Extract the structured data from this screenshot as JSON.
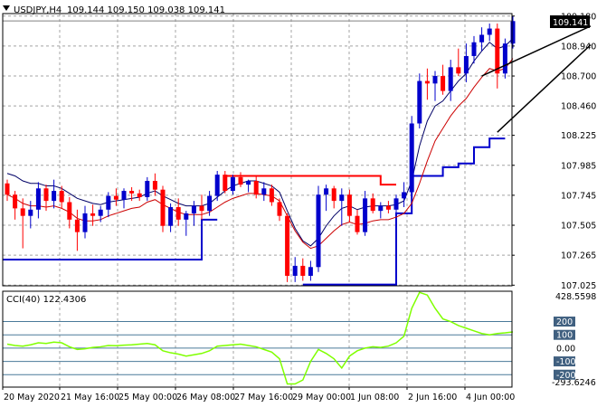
{
  "header": {
    "symbol_timeframe": "USDJPY,H4",
    "ohlc": "109.144 109.150 109.038 109.141"
  },
  "price_badge": {
    "value": "109.141"
  },
  "cci_panel": {
    "label": "CCI(40) 122.4306",
    "max_label": "428.5598",
    "min_label": "-293.6246",
    "levels": [
      "200",
      "100",
      "0.00",
      "-100",
      "-200"
    ]
  },
  "chart_data": [
    {
      "type": "candlestick",
      "panel": "main",
      "title": "USDJPY,H4",
      "x_ticks": [
        "20 May 2020",
        "21 May 16:00",
        "25 May 00:00",
        "26 May 08:00",
        "27 May 16:00",
        "29 May 00:00",
        "1 Jun 08:00",
        "2 Jun 16:00",
        "4 Jun 00:00"
      ],
      "y_ticks": [
        "109.180",
        "108.940",
        "108.700",
        "108.460",
        "108.225",
        "107.985",
        "107.745",
        "107.505",
        "107.265",
        "107.025"
      ],
      "ylim": [
        107.02,
        109.2
      ],
      "grid": true,
      "colors": {
        "up": "#0000cc",
        "down": "#ff0000",
        "grid": "#a4a4a4",
        "fast_ma": "#000066",
        "slow_ma": "#cc0000",
        "stop_line": "#0000cc",
        "resistance": "#ff0000",
        "wedge": "#000000",
        "price_line": "#808080"
      },
      "candles": [
        {
          "o": 107.84,
          "h": 107.87,
          "l": 107.7,
          "c": 107.75
        },
        {
          "o": 107.75,
          "h": 107.78,
          "l": 107.55,
          "c": 107.64
        },
        {
          "o": 107.64,
          "h": 107.72,
          "l": 107.32,
          "c": 107.58
        },
        {
          "o": 107.58,
          "h": 107.7,
          "l": 107.48,
          "c": 107.63
        },
        {
          "o": 107.63,
          "h": 107.85,
          "l": 107.56,
          "c": 107.8
        },
        {
          "o": 107.8,
          "h": 107.83,
          "l": 107.62,
          "c": 107.7
        },
        {
          "o": 107.7,
          "h": 107.87,
          "l": 107.64,
          "c": 107.78
        },
        {
          "o": 107.78,
          "h": 107.82,
          "l": 107.64,
          "c": 107.69
        },
        {
          "o": 107.69,
          "h": 107.73,
          "l": 107.48,
          "c": 107.55
        },
        {
          "o": 107.55,
          "h": 107.63,
          "l": 107.3,
          "c": 107.45
        },
        {
          "o": 107.45,
          "h": 107.66,
          "l": 107.4,
          "c": 107.6
        },
        {
          "o": 107.6,
          "h": 107.67,
          "l": 107.5,
          "c": 107.58
        },
        {
          "o": 107.58,
          "h": 107.66,
          "l": 107.53,
          "c": 107.63
        },
        {
          "o": 107.63,
          "h": 107.77,
          "l": 107.57,
          "c": 107.74
        },
        {
          "o": 107.74,
          "h": 107.8,
          "l": 107.66,
          "c": 107.71
        },
        {
          "o": 107.71,
          "h": 107.8,
          "l": 107.64,
          "c": 107.78
        },
        {
          "o": 107.78,
          "h": 107.81,
          "l": 107.7,
          "c": 107.76
        },
        {
          "o": 107.76,
          "h": 107.79,
          "l": 107.7,
          "c": 107.73
        },
        {
          "o": 107.73,
          "h": 107.89,
          "l": 107.7,
          "c": 107.86
        },
        {
          "o": 107.86,
          "h": 107.92,
          "l": 107.74,
          "c": 107.79
        },
        {
          "o": 107.79,
          "h": 107.82,
          "l": 107.45,
          "c": 107.5
        },
        {
          "o": 107.5,
          "h": 107.68,
          "l": 107.45,
          "c": 107.65
        },
        {
          "o": 107.65,
          "h": 107.72,
          "l": 107.5,
          "c": 107.55
        },
        {
          "o": 107.55,
          "h": 107.62,
          "l": 107.42,
          "c": 107.6
        },
        {
          "o": 107.6,
          "h": 107.7,
          "l": 107.5,
          "c": 107.66
        },
        {
          "o": 107.66,
          "h": 107.75,
          "l": 107.55,
          "c": 107.62
        },
        {
          "o": 107.62,
          "h": 107.78,
          "l": 107.58,
          "c": 107.74
        },
        {
          "o": 107.74,
          "h": 107.94,
          "l": 107.7,
          "c": 107.91
        },
        {
          "o": 107.91,
          "h": 107.94,
          "l": 107.76,
          "c": 107.78
        },
        {
          "o": 107.78,
          "h": 107.91,
          "l": 107.75,
          "c": 107.89
        },
        {
          "o": 107.89,
          "h": 107.93,
          "l": 107.81,
          "c": 107.83
        },
        {
          "o": 107.83,
          "h": 107.87,
          "l": 107.77,
          "c": 107.86
        },
        {
          "o": 107.86,
          "h": 107.9,
          "l": 107.72,
          "c": 107.75
        },
        {
          "o": 107.75,
          "h": 107.85,
          "l": 107.7,
          "c": 107.8
        },
        {
          "o": 107.8,
          "h": 107.83,
          "l": 107.66,
          "c": 107.69
        },
        {
          "o": 107.69,
          "h": 107.72,
          "l": 107.54,
          "c": 107.58
        },
        {
          "o": 107.58,
          "h": 107.6,
          "l": 107.05,
          "c": 107.1
        },
        {
          "o": 107.1,
          "h": 107.25,
          "l": 107.05,
          "c": 107.18
        },
        {
          "o": 107.18,
          "h": 107.24,
          "l": 107.06,
          "c": 107.1
        },
        {
          "o": 107.1,
          "h": 107.22,
          "l": 107.06,
          "c": 107.17
        },
        {
          "o": 107.17,
          "h": 107.82,
          "l": 107.13,
          "c": 107.75
        },
        {
          "o": 107.75,
          "h": 107.83,
          "l": 107.62,
          "c": 107.8
        },
        {
          "o": 107.8,
          "h": 107.82,
          "l": 107.64,
          "c": 107.7
        },
        {
          "o": 107.7,
          "h": 107.8,
          "l": 107.5,
          "c": 107.75
        },
        {
          "o": 107.75,
          "h": 107.79,
          "l": 107.53,
          "c": 107.58
        },
        {
          "o": 107.58,
          "h": 107.63,
          "l": 107.43,
          "c": 107.45
        },
        {
          "o": 107.45,
          "h": 107.78,
          "l": 107.42,
          "c": 107.72
        },
        {
          "o": 107.72,
          "h": 107.76,
          "l": 107.6,
          "c": 107.62
        },
        {
          "o": 107.62,
          "h": 107.69,
          "l": 107.56,
          "c": 107.66
        },
        {
          "o": 107.66,
          "h": 107.7,
          "l": 107.6,
          "c": 107.63
        },
        {
          "o": 107.63,
          "h": 107.75,
          "l": 107.58,
          "c": 107.72
        },
        {
          "o": 107.72,
          "h": 107.85,
          "l": 107.65,
          "c": 107.77
        },
        {
          "o": 107.77,
          "h": 108.38,
          "l": 107.74,
          "c": 108.32
        },
        {
          "o": 108.32,
          "h": 108.72,
          "l": 108.28,
          "c": 108.66
        },
        {
          "o": 108.66,
          "h": 108.76,
          "l": 108.51,
          "c": 108.64
        },
        {
          "o": 108.64,
          "h": 108.74,
          "l": 108.5,
          "c": 108.7
        },
        {
          "o": 108.7,
          "h": 108.79,
          "l": 108.55,
          "c": 108.58
        },
        {
          "o": 108.58,
          "h": 108.83,
          "l": 108.5,
          "c": 108.77
        },
        {
          "o": 108.77,
          "h": 108.92,
          "l": 108.7,
          "c": 108.72
        },
        {
          "o": 108.72,
          "h": 108.96,
          "l": 108.65,
          "c": 108.86
        },
        {
          "o": 108.86,
          "h": 109.02,
          "l": 108.8,
          "c": 108.97
        },
        {
          "o": 108.97,
          "h": 109.09,
          "l": 108.9,
          "c": 109.03
        },
        {
          "o": 109.03,
          "h": 109.12,
          "l": 108.98,
          "c": 109.08
        },
        {
          "o": 109.08,
          "h": 109.12,
          "l": 108.6,
          "c": 108.72
        },
        {
          "o": 108.72,
          "h": 109.0,
          "l": 108.68,
          "c": 108.96
        },
        {
          "o": 108.96,
          "h": 109.18,
          "l": 108.92,
          "c": 109.14
        }
      ],
      "series": [
        {
          "values": [
            107.92,
            107.9,
            107.86,
            107.84,
            107.84,
            107.82,
            107.82,
            107.8,
            107.76,
            107.72,
            107.7,
            107.68,
            107.67,
            107.69,
            107.7,
            107.71,
            107.72,
            107.73,
            107.76,
            107.78,
            107.74,
            107.71,
            107.68,
            107.66,
            107.66,
            107.66,
            107.68,
            107.73,
            107.78,
            107.82,
            107.84,
            107.86,
            107.86,
            107.84,
            107.82,
            107.77,
            107.62,
            107.48,
            107.38,
            107.34,
            107.4,
            107.5,
            107.58,
            107.64,
            107.66,
            107.63,
            107.65,
            107.66,
            107.66,
            107.66,
            107.67,
            107.7,
            107.86,
            108.14,
            108.34,
            108.46,
            108.5,
            108.58,
            108.66,
            108.72,
            108.82,
            108.9,
            108.97,
            108.92,
            108.94,
            109.0
          ]
        },
        {
          "values": [
            107.75,
            107.72,
            107.68,
            107.66,
            107.66,
            107.65,
            107.66,
            107.64,
            107.61,
            107.56,
            107.54,
            107.54,
            107.55,
            107.58,
            107.6,
            107.62,
            107.64,
            107.65,
            107.69,
            107.71,
            107.67,
            107.64,
            107.61,
            107.59,
            107.59,
            107.59,
            107.61,
            107.65,
            107.69,
            107.72,
            107.74,
            107.76,
            107.76,
            107.75,
            107.74,
            107.7,
            107.58,
            107.46,
            107.37,
            107.32,
            107.34,
            107.4,
            107.46,
            107.51,
            107.53,
            107.51,
            107.52,
            107.54,
            107.55,
            107.55,
            107.57,
            107.6,
            107.68,
            107.84,
            108.02,
            108.18,
            108.28,
            108.38,
            108.46,
            108.52,
            108.61,
            108.69,
            108.76,
            108.74,
            108.76,
            108.84
          ]
        }
      ],
      "stop_line": [
        {
          "from": 0,
          "to": 25,
          "v": 107.23
        },
        {
          "from": 25,
          "to": 27,
          "v": 107.55
        },
        {
          "from": 38,
          "to": 50,
          "v": 107.03
        },
        {
          "from": 50,
          "to": 52,
          "v": 107.6
        },
        {
          "from": 52,
          "to": 56,
          "v": 107.9
        },
        {
          "from": 56,
          "to": 58,
          "v": 107.97
        },
        {
          "from": 58,
          "to": 60,
          "v": 108.0
        },
        {
          "from": 60,
          "to": 62,
          "v": 108.13
        },
        {
          "from": 62,
          "to": 64,
          "v": 108.2
        }
      ],
      "resistance": [
        {
          "from": 28,
          "to": 48,
          "v": 107.9
        },
        {
          "from": 48,
          "to": 50,
          "v": 107.83
        }
      ],
      "wedge": [
        {
          "x0": 61,
          "v0": 108.7,
          "x1": 75,
          "v1": 109.1
        },
        {
          "x0": 63,
          "v0": 108.25,
          "x1": 75,
          "v1": 108.95
        }
      ],
      "last_price": 109.141
    },
    {
      "type": "line",
      "panel": "indicator",
      "title": "CCI(40) 122.4306",
      "y_ticks": [
        "428.5598",
        "200",
        "100",
        "0.00",
        "-100",
        "-200",
        "-293.6246"
      ],
      "ylim": [
        -293.6246,
        428.5598
      ],
      "levels": [
        200,
        100,
        0,
        -100,
        -200
      ],
      "color": "#7fff00",
      "values": [
        30,
        20,
        15,
        25,
        40,
        35,
        45,
        40,
        10,
        -10,
        -5,
        5,
        10,
        20,
        18,
        22,
        25,
        30,
        35,
        25,
        -20,
        -35,
        -45,
        -60,
        -50,
        -40,
        -20,
        15,
        20,
        25,
        30,
        20,
        10,
        -10,
        -30,
        -80,
        -270,
        -270,
        -240,
        -100,
        -10,
        -40,
        -80,
        -150,
        -60,
        -20,
        0,
        10,
        5,
        15,
        40,
        90,
        300,
        420,
        400,
        300,
        220,
        200,
        170,
        150,
        130,
        110,
        100,
        110,
        115,
        122
      ]
    }
  ]
}
